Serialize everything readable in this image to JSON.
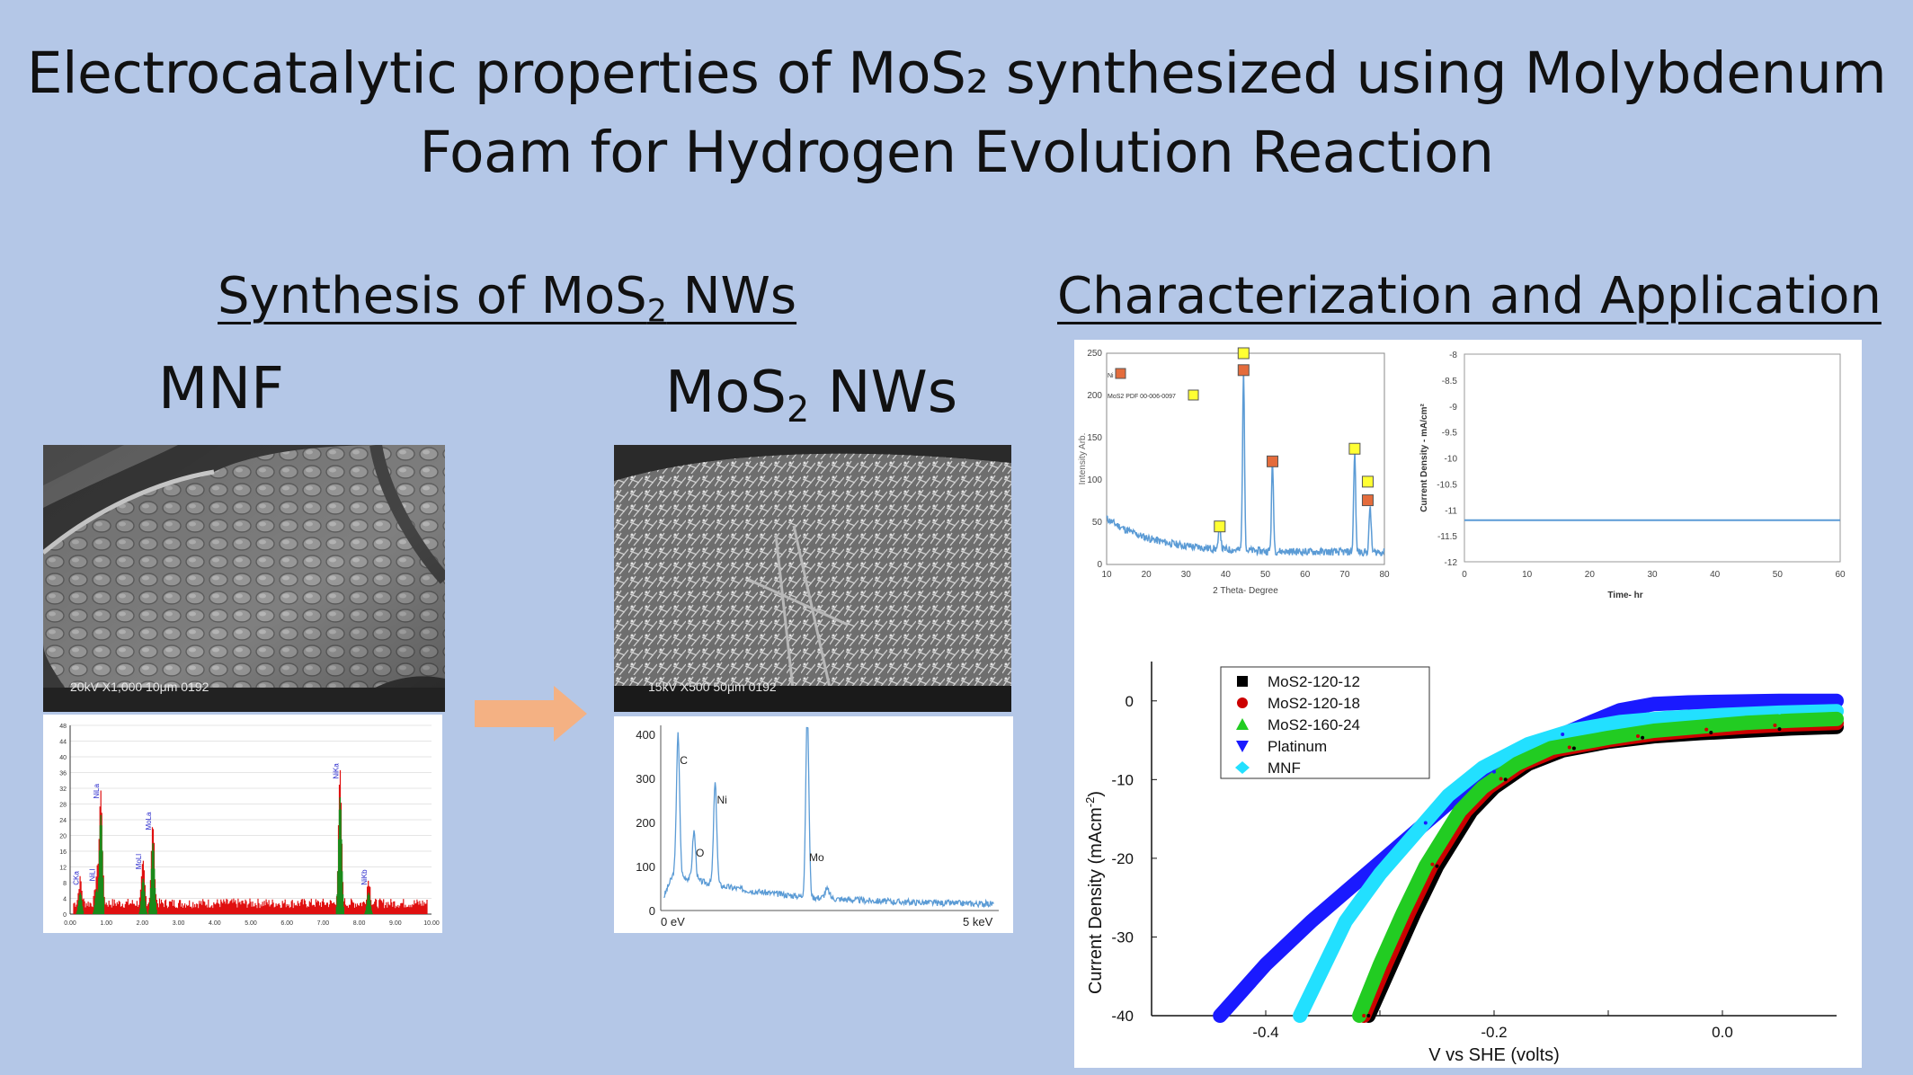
{
  "title": {
    "line1_pre": "Electrocatalytic properties of MoS",
    "line1_sub": "2",
    "line1_post": " synthesized using Molybdenum",
    "line2": "Foam for Hydrogen Evolution Reaction"
  },
  "synthesis": {
    "heading_pre": "Synthesis of MoS",
    "heading_sub": "2",
    "heading_post": " NWs",
    "mnf_label": "MNF",
    "nws_label_pre": "MoS",
    "nws_label_sub": "2",
    "nws_label_post": " NWs",
    "sem_mnf_caption": "20kV   X1,000   10μm  0192",
    "sem_nws_caption": "15kV   X500   50μm  0192"
  },
  "characterization": {
    "heading": "Characterization and Application"
  },
  "colors": {
    "background": "#b4c7e7",
    "arrow": "#f4b183",
    "xrd_line": "#5b9bd5",
    "ni_marker": "#e46c3c",
    "mos2_marker": "#ffff33"
  },
  "chart_data": [
    {
      "type": "bar",
      "title": "",
      "xlabel": "",
      "ylabel": "",
      "ylim": [
        0,
        48
      ],
      "yticks": [
        0,
        4,
        8,
        12,
        16,
        20,
        24,
        28,
        32,
        36,
        40,
        44,
        48
      ],
      "xticks": [
        "0.00",
        "1.00",
        "2.00",
        "3.00",
        "4.00",
        "5.00",
        "6.00",
        "7.00",
        "8.00",
        "9.00",
        "10.00"
      ],
      "peaks": [
        {
          "label": "CKa",
          "x": 0.28,
          "value": 6
        },
        {
          "label": "NiLa",
          "x": 0.85,
          "value": 28
        },
        {
          "label": "NiLl",
          "x": 0.74,
          "value": 7
        },
        {
          "label": "MoLl",
          "x": 2.02,
          "value": 10
        },
        {
          "label": "MoLa",
          "x": 2.29,
          "value": 20
        },
        {
          "label": "NiKa",
          "x": 7.47,
          "value": 33
        },
        {
          "label": "NiKb",
          "x": 8.26,
          "value": 6
        }
      ]
    },
    {
      "type": "line",
      "title": "",
      "xlabel": "",
      "ylabel": "",
      "xrange_label_start": "0 eV",
      "xrange_label_end": "5 keV",
      "ylim": [
        0,
        400
      ],
      "yticks": [
        0,
        100,
        200,
        300,
        400
      ],
      "peaks": [
        {
          "label": "C",
          "x": 0.27,
          "value": 320
        },
        {
          "label": "O",
          "x": 0.52,
          "value": 110
        },
        {
          "label": "Ni",
          "x": 0.85,
          "value": 230
        },
        {
          "label": "Mo",
          "x": 2.29,
          "value": 410
        }
      ]
    },
    {
      "type": "line",
      "title": "",
      "xlabel": "2 Theta- Degree",
      "ylabel": "Intensity Arb.",
      "xlim": [
        10,
        80
      ],
      "ylim": [
        0,
        250
      ],
      "xticks": [
        10,
        20,
        30,
        40,
        50,
        60,
        70,
        80
      ],
      "yticks": [
        0,
        50,
        100,
        150,
        200,
        250
      ],
      "legend": [
        "Ni",
        "MoS2 PDF 00-006-0097"
      ],
      "legend_position": "top-left",
      "peaks": [
        {
          "x": 38.5,
          "value": 30
        },
        {
          "x": 44.5,
          "value": 210
        },
        {
          "x": 51.8,
          "value": 105
        },
        {
          "x": 72.5,
          "value": 120
        },
        {
          "x": 76.4,
          "value": 55
        }
      ],
      "markers": [
        {
          "type": "MoS2",
          "x": 38.5,
          "value": 45
        },
        {
          "type": "MoS2",
          "x": 44.5,
          "value": 250
        },
        {
          "type": "Ni",
          "x": 44.5,
          "value": 230
        },
        {
          "type": "Ni",
          "x": 51.8,
          "value": 122
        },
        {
          "type": "MoS2",
          "x": 72.5,
          "value": 137
        },
        {
          "type": "MoS2",
          "x": 75.8,
          "value": 98
        },
        {
          "type": "Ni",
          "x": 75.8,
          "value": 76
        }
      ]
    },
    {
      "type": "line",
      "title": "",
      "xlabel": "Time- hr",
      "ylabel": "Current Density - mA/cm²",
      "xlim": [
        0,
        60
      ],
      "ylim": [
        -12,
        -8
      ],
      "xticks": [
        0,
        10,
        20,
        30,
        40,
        50,
        60
      ],
      "yticks": [
        "-8",
        "-8.5",
        "-9",
        "-9.5",
        "-10",
        "-10.5",
        "-11",
        "-11.5",
        "-12"
      ],
      "series": [
        {
          "x": [
            0,
            60
          ],
          "values": [
            -11.2,
            -11.2
          ]
        }
      ]
    },
    {
      "type": "line",
      "title": "",
      "xlabel": "V vs SHE (volts)",
      "ylabel": "Current Density (mAcm",
      "ylabel_sup": "-2",
      "xlim": [
        -0.5,
        0.1
      ],
      "ylim": [
        -40,
        5
      ],
      "xticks": [
        "-0.4",
        "-0.2",
        "0.0"
      ],
      "yticks": [
        "0",
        "-10",
        "-20",
        "-30",
        "-40"
      ],
      "legend_position": "top-left",
      "series": [
        {
          "name": "MoS2-120-12",
          "color": "#000000",
          "marker": "square",
          "x": [
            -0.31,
            -0.29,
            -0.27,
            -0.25,
            -0.22,
            -0.2,
            -0.17,
            -0.14,
            -0.1,
            -0.06,
            -0.02,
            0.02,
            0.06,
            0.1
          ],
          "values": [
            -40,
            -33.5,
            -27,
            -21,
            -14,
            -11,
            -8,
            -6.3,
            -5.2,
            -4.5,
            -4.1,
            -3.8,
            -3.5,
            -3.3
          ]
        },
        {
          "name": "MoS2-120-18",
          "color": "#cc0000",
          "marker": "circle",
          "x": [
            -0.314,
            -0.295,
            -0.275,
            -0.255,
            -0.225,
            -0.205,
            -0.175,
            -0.145,
            -0.1,
            -0.06,
            -0.02,
            0.02,
            0.06,
            0.1
          ],
          "values": [
            -40,
            -33.5,
            -27,
            -21,
            -14,
            -11,
            -8,
            -6.2,
            -5.0,
            -4.2,
            -3.7,
            -3.3,
            -3.0,
            -2.8
          ]
        },
        {
          "name": "MoS2-160-24",
          "color": "#22cc22",
          "marker": "triangle",
          "x": [
            -0.318,
            -0.3,
            -0.28,
            -0.26,
            -0.23,
            -0.21,
            -0.18,
            -0.15,
            -0.1,
            -0.06,
            -0.02,
            0.02,
            0.06,
            0.1
          ],
          "values": [
            -40,
            -33.5,
            -27,
            -21,
            -14,
            -11,
            -8,
            -6.0,
            -4.7,
            -3.8,
            -3.3,
            -2.8,
            -2.5,
            -2.3
          ]
        },
        {
          "name": "Platinum",
          "color": "#1a1aff",
          "marker": "triangle-down",
          "x": [
            -0.44,
            -0.4,
            -0.36,
            -0.32,
            -0.28,
            -0.24,
            -0.2,
            -0.16,
            -0.12,
            -0.09,
            -0.06,
            -0.03,
            0.0,
            0.05,
            0.1
          ],
          "values": [
            -40,
            -33.5,
            -28,
            -23,
            -18,
            -13,
            -9,
            -5.5,
            -3,
            -1.2,
            -0.4,
            -0.2,
            -0.1,
            0,
            0
          ]
        },
        {
          "name": "MNF",
          "color": "#22e0ff",
          "marker": "diamond",
          "x": [
            -0.37,
            -0.35,
            -0.33,
            -0.3,
            -0.27,
            -0.24,
            -0.21,
            -0.17,
            -0.13,
            -0.09,
            -0.05,
            0.0,
            0.05,
            0.1
          ],
          "values": [
            -40,
            -34,
            -28,
            -22,
            -17,
            -12,
            -8.5,
            -5.5,
            -3.7,
            -2.7,
            -2.2,
            -1.8,
            -1.5,
            -1.3
          ]
        }
      ]
    }
  ]
}
